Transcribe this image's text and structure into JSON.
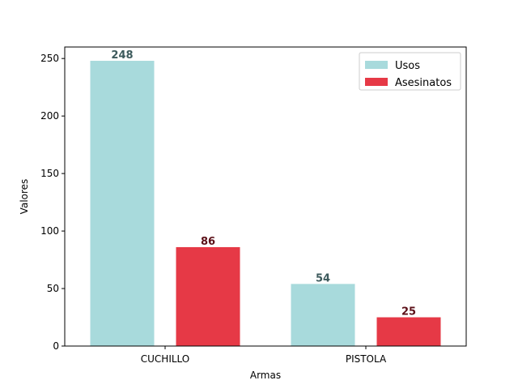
{
  "chart_data": {
    "type": "bar",
    "title": "",
    "xlabel": "Armas",
    "ylabel": "Valores",
    "categories": [
      "CUCHILLO",
      "PISTOLA"
    ],
    "series": [
      {
        "name": "Usos",
        "values": [
          248,
          54
        ],
        "color": "#a8dadc",
        "label_color": "#3d5a5c"
      },
      {
        "name": "Asesinatos",
        "values": [
          86,
          25
        ],
        "color": "#e63946",
        "label_color": "#5c1018"
      }
    ],
    "ylim": [
      0,
      260
    ],
    "yticks": [
      0,
      50,
      100,
      150,
      200,
      250
    ],
    "grid": false,
    "legend_position": "top-right"
  }
}
